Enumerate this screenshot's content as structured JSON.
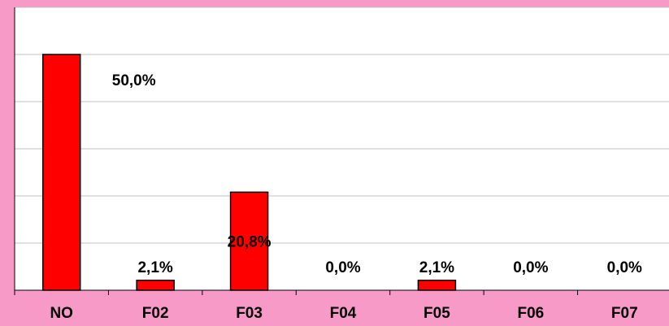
{
  "chart_data": {
    "type": "bar",
    "categories": [
      "NO",
      "F02",
      "F03",
      "F04",
      "F05",
      "F06",
      "F07"
    ],
    "values": [
      50,
      2.1,
      20.8,
      0,
      2.1,
      0,
      0
    ],
    "value_labels": [
      "50,0%",
      "2,1%",
      "20,8%",
      "0,0%",
      "2,1%",
      "0,0%",
      "0,0%"
    ],
    "color": "#ff0000",
    "ylim": [
      0,
      60
    ],
    "yticks": [
      0,
      10,
      20,
      30,
      40,
      50,
      60
    ],
    "grid": true
  }
}
